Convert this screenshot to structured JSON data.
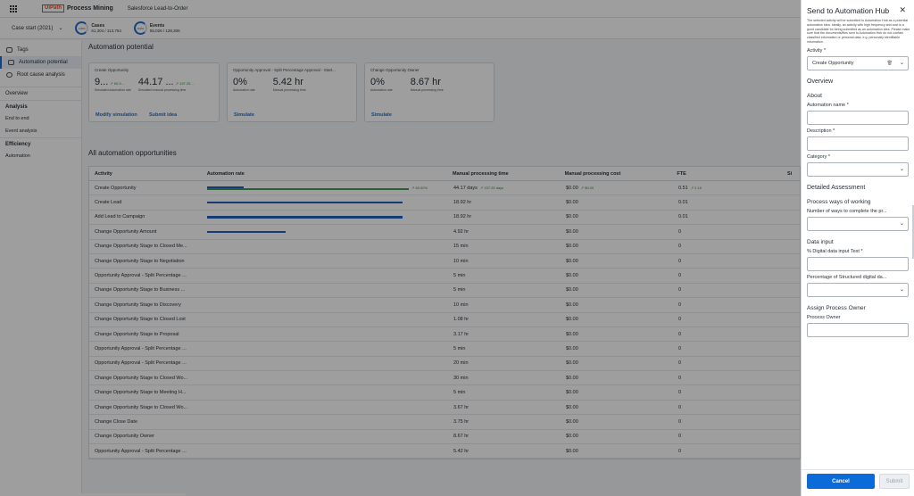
{
  "app": {
    "brand_box": "UiPath",
    "brand_name": "Process Mining",
    "title": "Salesforce Lead-to-Order"
  },
  "subheader": {
    "case_select": "Case start (2021)",
    "cases_pct": "100%",
    "cases_label": "Cases",
    "cases_value": "61,304 / 113,754",
    "events_pct": "100%",
    "events_label": "Events",
    "events_value": "55,026 / 128,306"
  },
  "sidebar": {
    "items": [
      {
        "label": "Tags",
        "icon": "tag-icon"
      },
      {
        "label": "Automation potential",
        "icon": "robot-icon",
        "active": true
      },
      {
        "label": "Root cause analysis",
        "icon": "magnifier-icon"
      }
    ],
    "overview": "Overview",
    "analysis": "Analysis",
    "analysis_items": [
      "End to end",
      "Event analysis"
    ],
    "efficiency": "Efficiency",
    "efficiency_items": [
      "Automation"
    ]
  },
  "main": {
    "heading": "Automation potential",
    "cards": [
      {
        "title": "Create Opportunity",
        "v1": "9...",
        "v1_delta": "↗ 60.9...",
        "l1": "Simulated automation rate",
        "v2": "44.17 ...",
        "v2_delta": "↗ 197.25 ...",
        "l2": "Simulated manual processing time",
        "links": [
          "Modify simulation",
          "Submit idea"
        ]
      },
      {
        "title": "Opportunity Approval - Split Percentage Approval - Start...",
        "v1": "0%",
        "v1_delta": "",
        "l1": "Automation rate",
        "v2": "5.42 hr",
        "v2_delta": "",
        "l2": "Manual processing time",
        "links": [
          "Simulate"
        ]
      },
      {
        "title": "Change Opportunity Owner",
        "v1": "0%",
        "v1_delta": "",
        "l1": "Automation rate",
        "v2": "8.67 hr",
        "v2_delta": "",
        "l2": "Manual processing time",
        "links": [
          "Simulate"
        ]
      }
    ],
    "all_heading": "All automation opportunities",
    "columns": [
      "Activity",
      "Automation rate",
      "Manual processing time",
      "Manual processing cost",
      "FTE",
      "Si"
    ],
    "rows": [
      {
        "activity": "Create Opportunity",
        "rate": 0.18,
        "sim": 1.0,
        "rate_delta": "↗ 60.92%",
        "time": "44.17 days",
        "time_delta": "↗ 197.25 days",
        "cost": "$0.00",
        "cost_delta": "↗ $0.00",
        "fte": "0.51",
        "fte_delta": "↗ 2.15"
      },
      {
        "activity": "Create Lead",
        "rate": 0.97,
        "time": "18.92 hr",
        "cost": "$0.00",
        "fte": "0.01"
      },
      {
        "activity": "Add Lead to Campaign",
        "rate": 0.97,
        "time": "18.92 hr",
        "cost": "$0.00",
        "fte": "0.01"
      },
      {
        "activity": "Change Opportunity Amount",
        "rate": 0.39,
        "time": "4.92 hr",
        "cost": "$0.00",
        "fte": "0"
      },
      {
        "activity": "Change Opportunity Stage to Closed Me...",
        "rate": 0,
        "time": "15 min",
        "cost": "$0.00",
        "fte": "0"
      },
      {
        "activity": "Change Opportunity Stage to Negotiation",
        "rate": 0,
        "time": "10 min",
        "cost": "$0.00",
        "fte": "0"
      },
      {
        "activity": "Opportunity Approval - Split Percentage ...",
        "rate": 0,
        "time": "5 min",
        "cost": "$0.00",
        "fte": "0"
      },
      {
        "activity": "Change Opportunity Stage to Business ...",
        "rate": 0,
        "time": "5 min",
        "cost": "$0.00",
        "fte": "0"
      },
      {
        "activity": "Change Opportunity Stage to Discovery",
        "rate": 0,
        "time": "10 min",
        "cost": "$0.00",
        "fte": "0"
      },
      {
        "activity": "Change Opportunity Stage to Closed Lost",
        "rate": 0,
        "time": "1.08 hr",
        "cost": "$0.00",
        "fte": "0"
      },
      {
        "activity": "Change Opportunity Stage to Proposal",
        "rate": 0,
        "time": "3.17 hr",
        "cost": "$0.00",
        "fte": "0"
      },
      {
        "activity": "Opportunity Approval - Split Percentage ...",
        "rate": 0,
        "time": "5 min",
        "cost": "$0.00",
        "fte": "0"
      },
      {
        "activity": "Opportunity Approval - Split Percentage ...",
        "rate": 0,
        "time": "20 min",
        "cost": "$0.00",
        "fte": "0"
      },
      {
        "activity": "Change Opportunity Stage to Closed Wo...",
        "rate": 0,
        "time": "30 min",
        "cost": "$0.00",
        "fte": "0"
      },
      {
        "activity": "Change Opportunity Stage to Meeting H...",
        "rate": 0,
        "time": "5 min",
        "cost": "$0.00",
        "fte": "0"
      },
      {
        "activity": "Change Opportunity Stage to Closed Wo...",
        "rate": 0,
        "time": "3.67 hr",
        "cost": "$0.00",
        "fte": "0"
      },
      {
        "activity": "Change Close Date",
        "rate": 0,
        "time": "3.75 hr",
        "cost": "$0.00",
        "fte": "0"
      },
      {
        "activity": "Change Opportunity Owner",
        "rate": 0,
        "time": "8.67 hr",
        "cost": "$0.00",
        "fte": "0"
      },
      {
        "activity": "Opportunity Approval - Split Percentage ...",
        "rate": 0,
        "time": "5.42 hr",
        "cost": "$0.00",
        "fte": "0"
      }
    ]
  },
  "drawer": {
    "title": "Send to Automation Hub",
    "note": "The selected activity will be submitted to Automation Hub as a potential automation idea. Ideally, an activity with high frequency and cost is a good candidate for being submitted as an automation idea. Please make sure that the documents/files sent to Automation Hub do not contain classified information or personal data, e.g. personally identifiable information.",
    "activity_label": "Activity *",
    "activity_value": "Create Opportunity",
    "overview": "Overview",
    "about": "About",
    "name_label": "Automation name *",
    "desc_label": "Description *",
    "category_label": "Category *",
    "detailed": "Detailed Assessment",
    "process_ways": "Process ways of working",
    "ways_label": "Number of ways to complete the pr...",
    "data_input": "Data input",
    "digital_label": "% Digital data input Test *",
    "structured_label": "Percentage of Structured digital da...",
    "assign": "Assign Process Owner",
    "owner_label": "Process Owner",
    "cancel": "Cancel",
    "submit": "Submit"
  },
  "colors": {
    "accent": "#1a6ed8",
    "bar": "#1a5fc8",
    "positive": "#3b9d47",
    "brand": "#fa4616"
  }
}
